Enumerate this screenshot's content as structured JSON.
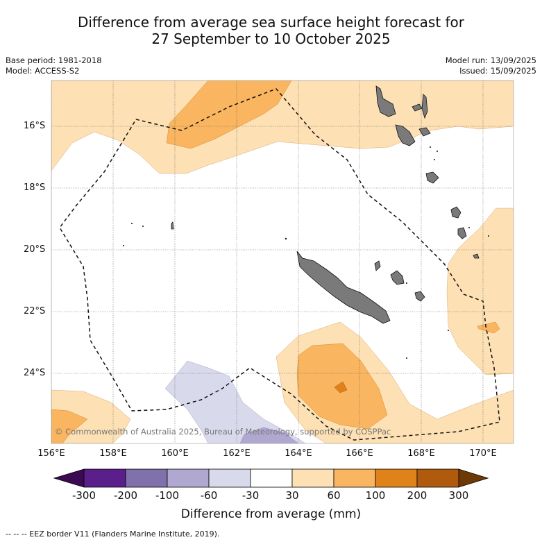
{
  "title_line1": "Difference from average sea surface height forecast for",
  "title_line2": "27 September to 10 October 2025",
  "base_period": "Base period: 1981-2018",
  "model": "Model: ACCESS-S2",
  "model_run": "Model run: 13/09/2025",
  "issued": "Issued: 15/09/2025",
  "lat_labels": [
    "16°S",
    "18°S",
    "20°S",
    "22°S",
    "24°S"
  ],
  "lon_labels": [
    "156°E",
    "158°E",
    "160°E",
    "162°E",
    "164°E",
    "166°E",
    "168°E",
    "170°E"
  ],
  "colorbar": {
    "title": "Difference from average (mm)",
    "ticks": [
      "-300",
      "-200",
      "-100",
      "-60",
      "-30",
      "30",
      "60",
      "100",
      "200",
      "300"
    ],
    "colors": [
      "#3b0a52",
      "#5a1f8a",
      "#8070ab",
      "#b0a8d0",
      "#d9d9ec",
      "#ffffff",
      "#fde0b4",
      "#f9b560",
      "#e0821a",
      "#b05a0e",
      "#6d3a06"
    ]
  },
  "copyright": "© Commonwealth of Australia 2025, Bureau of Meteorology, supported by COSPPac",
  "footer": "--  --  -- EEZ border V11 (Flanders Marine Institute, 2019)."
}
